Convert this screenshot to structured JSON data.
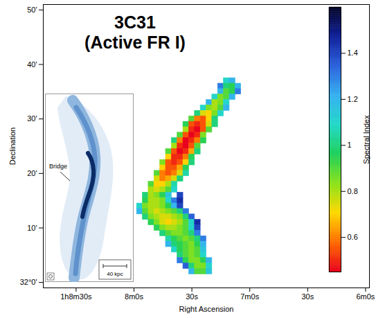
{
  "chart_data": {
    "type": "heatmap",
    "title": "3C31 (Active FR I)",
    "x_label": "Right Ascension",
    "y_label": "Declination",
    "xlim": [
      4127,
      3958
    ],
    "xticks": [
      {
        "value": 4110,
        "label": "1h8m30s"
      },
      {
        "value": 4080,
        "label": "8m0s"
      },
      {
        "value": 4050,
        "label": "30s"
      },
      {
        "value": 4020,
        "label": "7m0s"
      },
      {
        "value": 3990,
        "label": "30s"
      },
      {
        "value": 3960,
        "label": "6m0s"
      }
    ],
    "ylim": [
      -1,
      51
    ],
    "yticks": [
      {
        "value": 0,
        "label": "32°0'"
      },
      {
        "value": 10,
        "label": "10'"
      },
      {
        "value": 20,
        "label": "20'"
      },
      {
        "value": 30,
        "label": "30'"
      },
      {
        "value": 40,
        "label": "40'"
      },
      {
        "value": 50,
        "label": "50'"
      }
    ],
    "cells": [
      {
        "dec": 37,
        "ra": [
          4032,
          4029
        ],
        "values": [
          1.1,
          1.2
        ]
      },
      {
        "dec": 36,
        "ra": [
          4035,
          4032,
          4029,
          4026
        ],
        "values": [
          1.3,
          1.0,
          0.95,
          1.2
        ]
      },
      {
        "dec": 35,
        "ra": [
          4035,
          4032,
          4029,
          4026
        ],
        "values": [
          1.2,
          0.9,
          0.95,
          1.3
        ]
      },
      {
        "dec": 34,
        "ra": [
          4038,
          4035,
          4032,
          4029
        ],
        "values": [
          1.1,
          0.85,
          0.9,
          1.2
        ]
      },
      {
        "dec": 33,
        "ra": [
          4041,
          4038,
          4035,
          4032
        ],
        "values": [
          1.2,
          0.8,
          0.85,
          1.1
        ]
      },
      {
        "dec": 32,
        "ra": [
          4044,
          4041,
          4038,
          4035,
          4032
        ],
        "values": [
          1.1,
          0.85,
          0.8,
          0.9,
          1.2
        ]
      },
      {
        "dec": 31,
        "ra": [
          4047,
          4044,
          4041,
          4038,
          4035
        ],
        "values": [
          1.0,
          0.75,
          0.7,
          0.85,
          1.1
        ]
      },
      {
        "dec": 30,
        "ra": [
          4050,
          4047,
          4044,
          4041,
          4038
        ],
        "values": [
          0.9,
          0.6,
          0.55,
          0.7,
          1.0
        ]
      },
      {
        "dec": 29,
        "ra": [
          4053,
          4050,
          4047,
          4044,
          4041,
          4038
        ],
        "values": [
          0.95,
          0.55,
          0.5,
          0.55,
          0.75,
          1.0
        ]
      },
      {
        "dec": 28,
        "ra": [
          4053,
          4050,
          4047,
          4044,
          4041
        ],
        "values": [
          0.8,
          0.5,
          0.45,
          0.55,
          0.9
        ]
      },
      {
        "dec": 27,
        "ra": [
          4056,
          4053,
          4050,
          4047,
          4044
        ],
        "values": [
          0.9,
          0.55,
          0.45,
          0.5,
          0.85
        ]
      },
      {
        "dec": 26,
        "ra": [
          4059,
          4056,
          4053,
          4050,
          4047,
          4044
        ],
        "values": [
          1.0,
          0.6,
          0.45,
          0.5,
          0.6,
          0.95
        ]
      },
      {
        "dec": 25,
        "ra": [
          4059,
          4056,
          4053,
          4050,
          4047
        ],
        "values": [
          0.8,
          0.5,
          0.45,
          0.55,
          0.9
        ]
      },
      {
        "dec": 24,
        "ra": [
          4062,
          4059,
          4056,
          4053,
          4050,
          4047
        ],
        "values": [
          0.9,
          0.55,
          0.45,
          0.5,
          0.65,
          1.0
        ]
      },
      {
        "dec": 23,
        "ra": [
          4062,
          4059,
          4056,
          4053,
          4050
        ],
        "values": [
          0.7,
          0.5,
          0.5,
          0.6,
          0.95
        ]
      },
      {
        "dec": 22,
        "ra": [
          4065,
          4062,
          4059,
          4056,
          4053,
          4050
        ],
        "values": [
          0.85,
          0.55,
          0.5,
          0.55,
          0.7,
          1.0
        ]
      },
      {
        "dec": 21,
        "ra": [
          4065,
          4062,
          4059,
          4056,
          4053
        ],
        "values": [
          0.7,
          0.55,
          0.55,
          0.65,
          0.95
        ]
      },
      {
        "dec": 20,
        "ra": [
          4068,
          4065,
          4062,
          4059,
          4056,
          4053
        ],
        "values": [
          0.9,
          0.6,
          0.55,
          0.6,
          0.75,
          1.05
        ]
      },
      {
        "dec": 19,
        "ra": [
          4068,
          4065,
          4062,
          4059,
          4056
        ],
        "values": [
          0.75,
          0.6,
          0.65,
          0.75,
          1.0
        ]
      },
      {
        "dec": 18,
        "ra": [
          4071,
          4068,
          4065,
          4062,
          4059
        ],
        "values": [
          0.9,
          0.7,
          0.7,
          0.8,
          1.05
        ]
      },
      {
        "dec": 17,
        "ra": [
          4071,
          4068,
          4065,
          4062,
          4059
        ],
        "values": [
          0.8,
          0.75,
          0.8,
          0.9,
          1.1
        ]
      },
      {
        "dec": 16,
        "ra": [
          4074,
          4071,
          4068,
          4065,
          4062,
          4056
        ],
        "values": [
          1.0,
          0.8,
          0.85,
          0.95,
          1.15,
          1.4
        ]
      },
      {
        "dec": 15,
        "ra": [
          4074,
          4071,
          4068,
          4065,
          4062,
          4059,
          4056
        ],
        "values": [
          0.95,
          0.8,
          0.8,
          0.85,
          1.1,
          1.3,
          1.45
        ]
      },
      {
        "dec": 14,
        "ra": [
          4077,
          4074,
          4071,
          4068,
          4065,
          4062,
          4059,
          4056
        ],
        "values": [
          1.1,
          0.85,
          0.8,
          0.8,
          0.85,
          0.95,
          1.2,
          1.4
        ]
      },
      {
        "dec": 13,
        "ra": [
          4077,
          4074,
          4071,
          4068,
          4065,
          4062,
          4059,
          4056,
          4053
        ],
        "values": [
          1.2,
          0.9,
          0.8,
          0.75,
          0.8,
          0.85,
          0.9,
          1.0,
          1.3
        ]
      },
      {
        "dec": 12,
        "ra": [
          4074,
          4071,
          4068,
          4065,
          4062,
          4059,
          4056,
          4053,
          4050
        ],
        "values": [
          1.0,
          0.85,
          0.8,
          0.75,
          0.75,
          0.8,
          0.85,
          1.0,
          1.35
        ]
      },
      {
        "dec": 11,
        "ra": [
          4071,
          4068,
          4065,
          4062,
          4059,
          4056,
          4053,
          4050,
          4047
        ],
        "values": [
          0.95,
          0.85,
          0.75,
          0.7,
          0.75,
          0.8,
          0.9,
          1.1,
          1.45
        ]
      },
      {
        "dec": 10,
        "ra": [
          4068,
          4065,
          4062,
          4059,
          4056,
          4053,
          4050,
          4047
        ],
        "values": [
          0.95,
          0.85,
          0.8,
          0.8,
          0.85,
          0.9,
          1.1,
          1.4
        ]
      },
      {
        "dec": 9,
        "ra": [
          4065,
          4062,
          4059,
          4056,
          4053,
          4050,
          4047
        ],
        "values": [
          1.0,
          0.9,
          0.85,
          0.85,
          0.9,
          1.0,
          1.3
        ]
      },
      {
        "dec": 8,
        "ra": [
          4062,
          4059,
          4056,
          4053,
          4050,
          4047,
          4044
        ],
        "values": [
          1.05,
          0.95,
          0.9,
          0.85,
          0.9,
          1.0,
          1.3
        ]
      },
      {
        "dec": 7,
        "ra": [
          4062,
          4059,
          4056,
          4053,
          4050,
          4047,
          4044
        ],
        "values": [
          1.2,
          1.0,
          0.95,
          0.9,
          0.85,
          0.95,
          1.2
        ]
      },
      {
        "dec": 6,
        "ra": [
          4059,
          4056,
          4053,
          4050,
          4047,
          4044
        ],
        "values": [
          1.1,
          0.95,
          0.9,
          0.85,
          0.9,
          1.15
        ]
      },
      {
        "dec": 5,
        "ra": [
          4056,
          4053,
          4050,
          4047,
          4044
        ],
        "values": [
          1.0,
          0.9,
          0.85,
          0.9,
          1.1
        ]
      },
      {
        "dec": 4,
        "ra": [
          4056,
          4053,
          4050,
          4047,
          4044,
          4041
        ],
        "values": [
          1.3,
          0.95,
          0.85,
          0.85,
          0.95,
          1.2
        ]
      },
      {
        "dec": 3,
        "ra": [
          4053,
          4050,
          4047,
          4044,
          4041
        ],
        "values": [
          1.35,
          1.0,
          0.85,
          0.85,
          1.1
        ]
      },
      {
        "dec": 2,
        "ra": [
          4050,
          4047,
          4044,
          4041
        ],
        "values": [
          1.2,
          0.9,
          0.9,
          1.15
        ]
      }
    ],
    "colorbar": {
      "label": "Spectral Index",
      "range": [
        0.45,
        1.6
      ],
      "ticks": [
        0.6,
        0.8,
        1,
        1.2,
        1.4
      ]
    },
    "inset": {
      "label": "Bridge",
      "scale_bar": "40 kpc"
    }
  }
}
